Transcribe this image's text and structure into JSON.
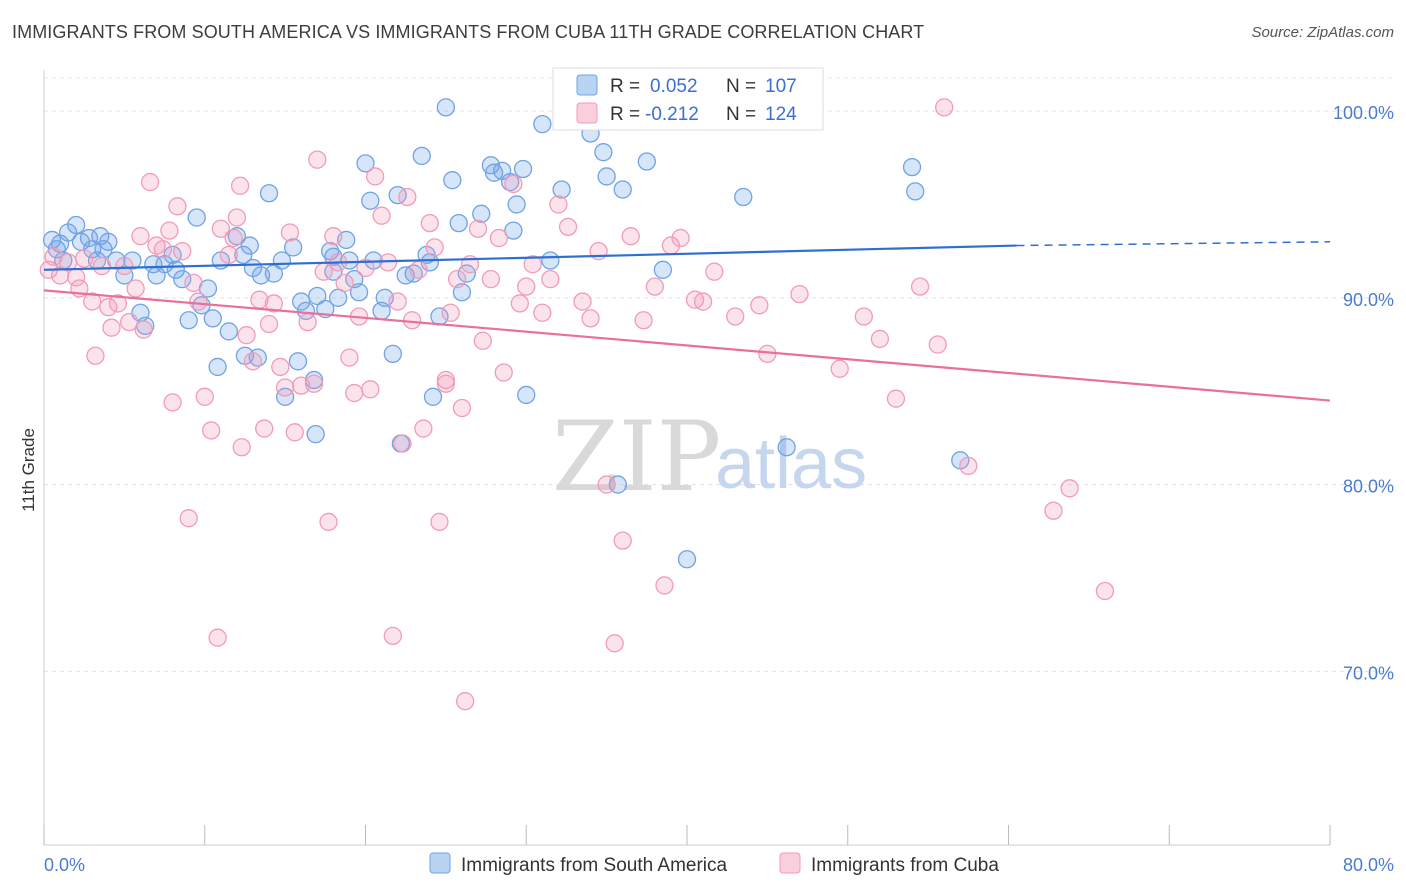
{
  "title": "IMMIGRANTS FROM SOUTH AMERICA VS IMMIGRANTS FROM CUBA 11TH GRADE CORRELATION CHART",
  "source": "Source: ZipAtlas.com",
  "watermark": {
    "zip": "ZIP",
    "atlas": "atlas"
  },
  "colors": {
    "blue": "#6fa3e6",
    "pink": "#f29bb8",
    "blue_line": "#2f6fd0",
    "pink_line": "#e8709a",
    "tick": "#4a7ccf"
  },
  "legend": {
    "rows": [
      {
        "r_label": "R =",
        "r_value": "0.052",
        "n_label": "N =",
        "n_value": "107"
      },
      {
        "r_label": "R =",
        "r_value": "-0.212",
        "n_label": "N =",
        "n_value": "124"
      }
    ]
  },
  "chart_data": {
    "type": "scatter",
    "ylabel": "11th Grade",
    "xlabel": "",
    "xlim": [
      0,
      80
    ],
    "ylim": [
      60.7,
      102.2
    ],
    "x_ticks": [
      "0.0%",
      "80.0%"
    ],
    "y_ticks": [
      {
        "value": 100,
        "label": "100.0%"
      },
      {
        "value": 90,
        "label": "90.0%"
      },
      {
        "value": 80,
        "label": "80.0%"
      },
      {
        "value": 70,
        "label": "70.0%"
      }
    ],
    "grid": true,
    "legend_position": "top-center",
    "series": [
      {
        "name": "Immigrants from South America",
        "color": "#6fa3e6",
        "trend": {
          "x0": 0,
          "y0": 91.5,
          "x1": 60.5,
          "y1": 92.8,
          "dash_to_x": 80,
          "dash_to_y": 93.0
        },
        "points": [
          [
            0.5,
            93.1
          ],
          [
            0.8,
            92.6
          ],
          [
            1.0,
            92.9
          ],
          [
            1.2,
            92.0
          ],
          [
            1.5,
            93.5
          ],
          [
            2.0,
            93.9
          ],
          [
            2.3,
            93.0
          ],
          [
            2.8,
            93.2
          ],
          [
            3.0,
            92.6
          ],
          [
            3.3,
            92.0
          ],
          [
            3.5,
            93.3
          ],
          [
            3.7,
            92.6
          ],
          [
            4.0,
            93.0
          ],
          [
            4.5,
            92.0
          ],
          [
            5.0,
            91.2
          ],
          [
            5.5,
            92.0
          ],
          [
            6.0,
            89.2
          ],
          [
            6.3,
            88.5
          ],
          [
            6.8,
            91.8
          ],
          [
            7.0,
            91.2
          ],
          [
            7.5,
            91.8
          ],
          [
            8.0,
            92.3
          ],
          [
            8.2,
            91.5
          ],
          [
            8.6,
            91.0
          ],
          [
            9.0,
            88.8
          ],
          [
            9.5,
            94.3
          ],
          [
            9.8,
            89.6
          ],
          [
            10.2,
            90.5
          ],
          [
            10.5,
            88.9
          ],
          [
            10.8,
            86.3
          ],
          [
            11.0,
            92.0
          ],
          [
            11.5,
            88.2
          ],
          [
            12.0,
            93.3
          ],
          [
            12.4,
            92.3
          ],
          [
            12.8,
            92.8
          ],
          [
            13.0,
            91.6
          ],
          [
            13.3,
            86.8
          ],
          [
            13.5,
            91.2
          ],
          [
            14.0,
            95.6
          ],
          [
            14.3,
            91.3
          ],
          [
            14.8,
            92.0
          ],
          [
            15.0,
            84.7
          ],
          [
            15.5,
            92.7
          ],
          [
            15.8,
            86.6
          ],
          [
            16.0,
            89.8
          ],
          [
            16.3,
            89.3
          ],
          [
            16.8,
            85.6
          ],
          [
            17.0,
            90.1
          ],
          [
            17.5,
            89.4
          ],
          [
            17.8,
            92.5
          ],
          [
            18.0,
            92.2
          ],
          [
            18.3,
            90.0
          ],
          [
            18.8,
            93.1
          ],
          [
            19.0,
            92.0
          ],
          [
            19.3,
            91.0
          ],
          [
            19.6,
            90.3
          ],
          [
            20.0,
            97.2
          ],
          [
            20.3,
            95.2
          ],
          [
            20.5,
            92.0
          ],
          [
            21.0,
            89.3
          ],
          [
            21.2,
            90.0
          ],
          [
            21.7,
            87.0
          ],
          [
            22.0,
            95.5
          ],
          [
            22.5,
            91.2
          ],
          [
            23.0,
            91.3
          ],
          [
            23.5,
            97.6
          ],
          [
            23.8,
            92.3
          ],
          [
            24.0,
            91.9
          ],
          [
            24.2,
            84.7
          ],
          [
            24.6,
            89.0
          ],
          [
            25.0,
            100.2
          ],
          [
            25.4,
            96.3
          ],
          [
            25.8,
            94.0
          ],
          [
            26.0,
            90.3
          ],
          [
            26.3,
            91.3
          ],
          [
            27.2,
            94.5
          ],
          [
            27.8,
            97.1
          ],
          [
            28.0,
            96.7
          ],
          [
            28.5,
            96.8
          ],
          [
            29.0,
            96.2
          ],
          [
            29.2,
            93.6
          ],
          [
            29.4,
            95.0
          ],
          [
            29.8,
            96.9
          ],
          [
            30.0,
            84.8
          ],
          [
            31.0,
            99.3
          ],
          [
            31.5,
            92.0
          ],
          [
            32.2,
            95.8
          ],
          [
            33.0,
            99.6
          ],
          [
            34.0,
            98.8
          ],
          [
            34.8,
            97.8
          ],
          [
            35.0,
            96.5
          ],
          [
            35.7,
            80.0
          ],
          [
            36.0,
            95.8
          ],
          [
            37.5,
            97.3
          ],
          [
            38.0,
            100.1
          ],
          [
            38.5,
            91.5
          ],
          [
            40.0,
            76.0
          ],
          [
            43.5,
            95.4
          ],
          [
            46.2,
            82.0
          ],
          [
            54.0,
            97.0
          ],
          [
            54.2,
            95.7
          ],
          [
            57.0,
            81.3
          ],
          [
            22.2,
            82.2
          ],
          [
            16.9,
            82.7
          ],
          [
            18.0,
            91.4
          ],
          [
            12.5,
            86.9
          ]
        ]
      },
      {
        "name": "Immigrants from Cuba",
        "color": "#f29bb8",
        "trend": {
          "x0": 0,
          "y0": 90.4,
          "x1": 80,
          "y1": 84.5
        },
        "points": [
          [
            0.3,
            91.5
          ],
          [
            0.6,
            92.2
          ],
          [
            1.0,
            91.2
          ],
          [
            1.5,
            91.9
          ],
          [
            2.0,
            91.1
          ],
          [
            2.2,
            90.5
          ],
          [
            2.5,
            92.1
          ],
          [
            3.0,
            89.8
          ],
          [
            3.2,
            86.9
          ],
          [
            3.6,
            91.7
          ],
          [
            4.0,
            89.5
          ],
          [
            4.2,
            88.4
          ],
          [
            4.6,
            89.7
          ],
          [
            5.0,
            91.7
          ],
          [
            5.3,
            88.7
          ],
          [
            5.7,
            90.5
          ],
          [
            6.0,
            93.3
          ],
          [
            6.2,
            88.3
          ],
          [
            6.6,
            96.2
          ],
          [
            7.0,
            92.8
          ],
          [
            7.4,
            92.6
          ],
          [
            7.8,
            93.6
          ],
          [
            8.0,
            84.4
          ],
          [
            8.3,
            94.9
          ],
          [
            8.6,
            92.5
          ],
          [
            9.0,
            78.2
          ],
          [
            9.3,
            90.8
          ],
          [
            9.6,
            89.8
          ],
          [
            10.0,
            84.7
          ],
          [
            10.4,
            82.9
          ],
          [
            10.8,
            71.8
          ],
          [
            11.0,
            93.7
          ],
          [
            11.5,
            92.3
          ],
          [
            11.8,
            93.2
          ],
          [
            12.0,
            94.3
          ],
          [
            12.3,
            82.0
          ],
          [
            12.6,
            88.0
          ],
          [
            13.0,
            86.6
          ],
          [
            13.4,
            89.9
          ],
          [
            13.7,
            83.0
          ],
          [
            14.0,
            88.6
          ],
          [
            14.3,
            89.7
          ],
          [
            14.7,
            86.3
          ],
          [
            15.0,
            85.2
          ],
          [
            15.3,
            93.5
          ],
          [
            15.6,
            82.8
          ],
          [
            16.0,
            85.3
          ],
          [
            16.4,
            88.7
          ],
          [
            16.8,
            85.4
          ],
          [
            17.0,
            97.4
          ],
          [
            17.4,
            91.4
          ],
          [
            17.7,
            78.0
          ],
          [
            18.0,
            93.3
          ],
          [
            18.3,
            91.9
          ],
          [
            18.7,
            90.8
          ],
          [
            19.0,
            86.8
          ],
          [
            19.3,
            84.9
          ],
          [
            19.6,
            89.0
          ],
          [
            20.0,
            91.6
          ],
          [
            20.3,
            85.1
          ],
          [
            20.6,
            96.5
          ],
          [
            21.0,
            94.4
          ],
          [
            21.4,
            91.9
          ],
          [
            21.7,
            71.9
          ],
          [
            22.0,
            89.8
          ],
          [
            22.3,
            82.2
          ],
          [
            22.6,
            95.4
          ],
          [
            22.9,
            88.8
          ],
          [
            23.3,
            91.5
          ],
          [
            23.6,
            83.0
          ],
          [
            24.0,
            94.0
          ],
          [
            24.3,
            92.7
          ],
          [
            24.6,
            78.0
          ],
          [
            25.0,
            85.6
          ],
          [
            25.3,
            89.2
          ],
          [
            25.7,
            91.0
          ],
          [
            26.0,
            84.1
          ],
          [
            26.2,
            68.4
          ],
          [
            26.5,
            91.8
          ],
          [
            27.0,
            93.7
          ],
          [
            27.3,
            87.7
          ],
          [
            27.8,
            91.0
          ],
          [
            28.3,
            93.2
          ],
          [
            28.6,
            86.0
          ],
          [
            29.2,
            96.1
          ],
          [
            29.6,
            89.7
          ],
          [
            30.0,
            90.6
          ],
          [
            30.4,
            91.8
          ],
          [
            31.0,
            89.2
          ],
          [
            31.5,
            91.0
          ],
          [
            32.0,
            95.0
          ],
          [
            32.6,
            93.8
          ],
          [
            33.5,
            89.8
          ],
          [
            34.0,
            88.9
          ],
          [
            34.5,
            92.5
          ],
          [
            35.0,
            80.0
          ],
          [
            35.5,
            71.5
          ],
          [
            36.0,
            77.0
          ],
          [
            36.5,
            93.3
          ],
          [
            37.3,
            88.8
          ],
          [
            38.0,
            90.6
          ],
          [
            38.6,
            74.6
          ],
          [
            39.0,
            92.8
          ],
          [
            39.6,
            93.2
          ],
          [
            40.5,
            89.9
          ],
          [
            41.0,
            89.8
          ],
          [
            41.7,
            91.4
          ],
          [
            43.0,
            89.0
          ],
          [
            44.5,
            89.6
          ],
          [
            45.0,
            87.0
          ],
          [
            47.0,
            90.2
          ],
          [
            49.5,
            86.2
          ],
          [
            51.0,
            89.0
          ],
          [
            52.0,
            87.8
          ],
          [
            53.0,
            84.6
          ],
          [
            54.5,
            90.6
          ],
          [
            55.6,
            87.5
          ],
          [
            57.5,
            81.0
          ],
          [
            62.8,
            78.6
          ],
          [
            63.8,
            79.8
          ],
          [
            66.0,
            74.3
          ],
          [
            56.0,
            100.2
          ],
          [
            25.0,
            85.4
          ],
          [
            12.2,
            96.0
          ]
        ]
      }
    ]
  },
  "bottom_legend": [
    "Immigrants from South America",
    "Immigrants from Cuba"
  ]
}
